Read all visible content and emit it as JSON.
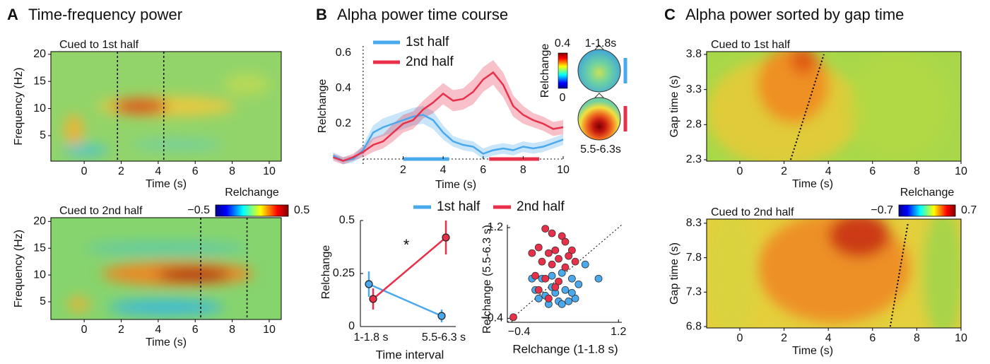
{
  "chart_data": [
    {
      "type": "heatmap",
      "panel": "A",
      "title": "Time-frequency power",
      "subtitle": "Cued to 1st half",
      "xlabel": "Time (s)",
      "ylabel": "Frequency (Hz)",
      "xlim": [
        -1.8,
        10.65
      ],
      "xticks": [
        0,
        2,
        4,
        6,
        8,
        10
      ],
      "ylim": [
        0.3,
        20.5
      ],
      "yticks": [
        5,
        10,
        15,
        20
      ],
      "markers": [
        1.8,
        4.3
      ]
    },
    {
      "type": "heatmap",
      "subtitle": "Cued to 2nd half",
      "xlabel": "Time (s)",
      "ylabel": "Frequency (Hz)",
      "xlim": [
        -1.8,
        10.65
      ],
      "xticks": [
        0,
        2,
        4,
        6,
        8,
        10
      ],
      "ylim": [
        1.7,
        20.7
      ],
      "yticks": [
        5,
        10,
        15,
        20
      ],
      "markers": [
        6.3,
        8.8
      ],
      "colorbar": {
        "label": "Relchange",
        "clim": [
          -0.5,
          0.5
        ],
        "ticks": [
          {
            "value": -0.5,
            "label": "−0.5"
          },
          0.5
        ]
      }
    },
    {
      "type": "line",
      "panel": "B",
      "title": "Alpha power time course",
      "xlabel": "Time (s)",
      "ylabel": "Relchange",
      "xlim": [
        -1.55,
        10
      ],
      "xticks": [
        2,
        4,
        6,
        8,
        10
      ],
      "ylim": [
        -0.028,
        0.66
      ],
      "yticks": [
        0.2,
        0.4,
        0.6
      ],
      "vline": 0,
      "hline": 0,
      "x": [
        -1.5,
        -1,
        -0.5,
        0,
        0.5,
        1,
        1.5,
        2,
        2.5,
        3,
        3.5,
        4,
        4.5,
        5,
        5.5,
        6,
        6.5,
        7,
        7.5,
        8,
        8.5,
        9,
        9.5,
        10
      ],
      "series": [
        {
          "name": "1st half",
          "color": "#4aa8ec",
          "values": [
            0.02,
            -0.01,
            0.0,
            0.05,
            0.15,
            0.18,
            0.2,
            0.22,
            0.24,
            0.25,
            0.22,
            0.15,
            0.1,
            0.08,
            0.07,
            0.03,
            0.05,
            0.06,
            0.05,
            0.07,
            0.06,
            0.07,
            0.09,
            0.11
          ],
          "errors": [
            0.02,
            0.02,
            0.02,
            0.03,
            0.04,
            0.05,
            0.05,
            0.05,
            0.05,
            0.05,
            0.05,
            0.04,
            0.03,
            0.03,
            0.03,
            0.03,
            0.03,
            0.03,
            0.03,
            0.03,
            0.03,
            0.03,
            0.03,
            0.03
          ]
        },
        {
          "name": "2nd half",
          "color": "#e8304a",
          "values": [
            0.01,
            -0.01,
            0.01,
            0.04,
            0.08,
            0.1,
            0.15,
            0.2,
            0.22,
            0.28,
            0.32,
            0.37,
            0.33,
            0.34,
            0.38,
            0.45,
            0.49,
            0.42,
            0.3,
            0.25,
            0.22,
            0.2,
            0.17,
            0.18
          ],
          "errors": [
            0.02,
            0.02,
            0.02,
            0.03,
            0.04,
            0.04,
            0.05,
            0.05,
            0.05,
            0.05,
            0.06,
            0.06,
            0.06,
            0.06,
            0.07,
            0.07,
            0.07,
            0.07,
            0.06,
            0.05,
            0.04,
            0.04,
            0.04,
            0.04
          ]
        }
      ],
      "intervals": [
        [
          2,
          4.3
        ],
        [
          6.3,
          8.8
        ]
      ],
      "inset": {
        "label": "Relchange",
        "clim": [
          0,
          0.4
        ],
        "ticks": [
          0,
          0.4
        ],
        "maps": [
          "1-1.8s",
          "5.5-6.3s"
        ]
      }
    },
    {
      "type": "errorbar",
      "xlabel": "Time interval",
      "ylabel": "Relchange",
      "annotation": "*",
      "categories": [
        "1-1.8 s",
        "5.5-6.3 s"
      ],
      "ylim": [
        0,
        0.5
      ],
      "yticks": [
        0,
        0.25,
        0.5
      ],
      "series": [
        {
          "name": "1st half",
          "color": "#4aa8ec",
          "values": [
            0.2,
            0.05
          ],
          "errors": [
            0.06,
            0.03
          ]
        },
        {
          "name": "2nd half",
          "color": "#e8304a",
          "values": [
            0.13,
            0.42
          ],
          "errors": [
            0.05,
            0.08
          ]
        }
      ]
    },
    {
      "type": "scatter",
      "xlabel": "Relchange (1-1.8 s)",
      "ylabel": "Relchange (5.5-6.3 s)",
      "xlim": [
        -0.47,
        1.25
      ],
      "ylim": [
        -0.47,
        1.25
      ],
      "xticks": [
        {
          "value": -0.4,
          "label": "−0.4"
        },
        1.2
      ],
      "yticks": [
        {
          "value": -0.4,
          "label": "−0.4"
        },
        1.2
      ],
      "series": [
        {
          "color": "#4aa8ec",
          "x": [
            -0.1,
            0.05,
            0.2,
            0.35,
            0.5,
            0.7,
            0.9,
            0.6,
            0.4,
            0.25,
            0.1,
            0.0,
            -0.05,
            0.3,
            0.45,
            0.55,
            0.15,
            0.35,
            0.2,
            0.5
          ],
          "y": [
            0.3,
            0.3,
            0.35,
            0.4,
            0.3,
            0.55,
            0.3,
            0.2,
            0.1,
            0.05,
            0.0,
            -0.05,
            0.1,
            -0.1,
            -0.1,
            -0.05,
            -0.15,
            -0.15,
            0.15,
            0.05
          ]
        },
        {
          "color": "#e8304a",
          "x": [
            -0.38,
            0.1,
            0.2,
            0.35,
            0.4,
            0.0,
            0.25,
            0.15,
            0.5,
            0.45,
            0.3,
            0.05,
            0.2,
            0.4,
            0.55,
            -0.05,
            0.1,
            0.3,
            0.0,
            0.25,
            0.15,
            -0.1
          ],
          "y": [
            -0.38,
            1.18,
            1.1,
            1.05,
            0.95,
            0.85,
            0.8,
            0.75,
            0.8,
            0.7,
            0.65,
            0.6,
            0.55,
            0.5,
            0.6,
            0.35,
            0.3,
            0.25,
            0.1,
            0.15,
            -0.05,
            0.75
          ]
        }
      ]
    },
    {
      "type": "heatmap",
      "panel": "C",
      "title": "Alpha power sorted by gap time",
      "subtitle": "Cued to 1st half",
      "xlabel": "Time (s)",
      "ylabel": "Gap time (s)",
      "xlim": [
        -1.5,
        10
      ],
      "xticks": [
        0,
        2,
        4,
        6,
        8,
        10
      ],
      "ylim": [
        2.28,
        3.84
      ],
      "yticks": [
        2.3,
        2.8,
        3.3,
        3.8
      ],
      "sort_line": {
        "x": [
          2.3,
          3.8
        ],
        "y": [
          2.3,
          3.8
        ]
      }
    },
    {
      "type": "heatmap",
      "subtitle": "Cued to 2nd half",
      "xlabel": "Time (s)",
      "ylabel": "Gap time (s)",
      "xlim": [
        -1.5,
        10
      ],
      "xticks": [
        0,
        2,
        4,
        6,
        8,
        10
      ],
      "ylim": [
        6.78,
        8.36
      ],
      "yticks": [
        6.8,
        7.3,
        7.8,
        8.3
      ],
      "sort_line": {
        "x": [
          6.8,
          7.6
        ],
        "y": [
          6.8,
          8.3
        ]
      },
      "colorbar": {
        "label": "Relchange",
        "clim": [
          -0.7,
          0.7
        ],
        "ticks": [
          {
            "value": -0.7,
            "label": "−0.7"
          },
          0.7
        ]
      }
    }
  ]
}
